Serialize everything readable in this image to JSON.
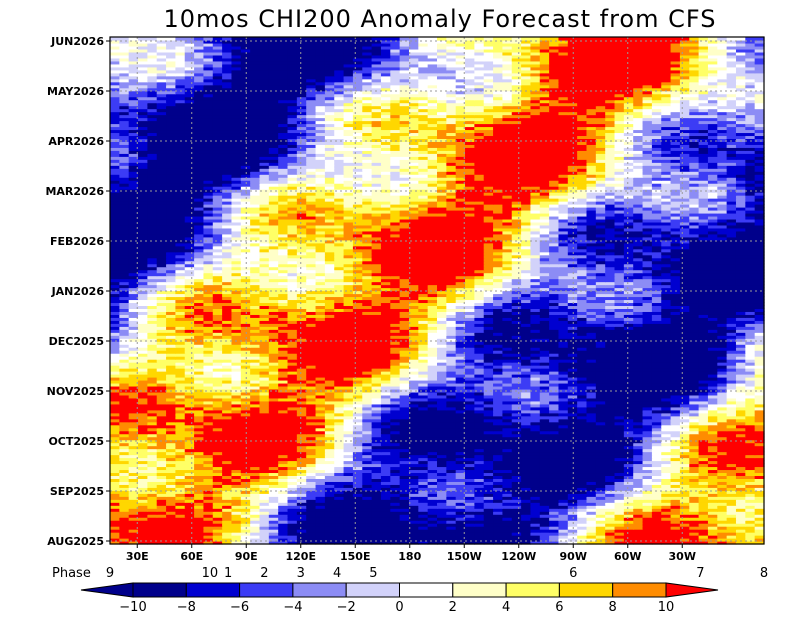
{
  "chart_data": {
    "type": "heatmap",
    "title": "10mos CHI200 Anomaly Forecast from CFS",
    "y_ticks": [
      "JUN2026",
      "MAY2026",
      "APR2026",
      "MAR2026",
      "FEB2026",
      "JAN2026",
      "DEC2025",
      "NOV2025",
      "OCT2025",
      "SEP2025",
      "AUG2025"
    ],
    "x_ticks": [
      "30E",
      "60E",
      "90E",
      "120E",
      "150E",
      "180",
      "150W",
      "120W",
      "90W",
      "60W",
      "30W"
    ],
    "x_tick_lon": [
      30,
      60,
      90,
      120,
      150,
      180,
      210,
      240,
      270,
      300,
      330
    ],
    "x_range_lon": [
      15,
      375
    ],
    "phase_label": "Phase",
    "phase_marks": [
      {
        "label": "9",
        "lon": 15
      },
      {
        "label": "10",
        "lon": 70
      },
      {
        "label": "1",
        "lon": 80
      },
      {
        "label": "2",
        "lon": 100
      },
      {
        "label": "3",
        "lon": 120
      },
      {
        "label": "4",
        "lon": 140
      },
      {
        "label": "5",
        "lon": 160
      },
      {
        "label": "6",
        "lon": 270
      },
      {
        "label": "7",
        "lon": 340
      },
      {
        "label": "8",
        "lon": 375
      }
    ],
    "levels": [
      -10,
      -8,
      -6,
      -4,
      -2,
      0,
      2,
      4,
      6,
      8,
      10
    ],
    "level_labels": [
      "−10",
      "−8",
      "−6",
      "−4",
      "−2",
      "0",
      "2",
      "4",
      "6",
      "8",
      "10"
    ],
    "colors": [
      "#00008b",
      "#0000d0",
      "#3c3cf5",
      "#8c8cf5",
      "#d2d2fa",
      "#ffffff",
      "#ffffc8",
      "#ffff66",
      "#ffd700",
      "#ff8c00",
      "#ff0000"
    ],
    "grid": true,
    "colorbar_position": "bottom",
    "phase_speed_lon_per_month": 30,
    "features": [
      {
        "type": "band",
        "amp": 12,
        "phase": 0
      },
      {
        "type": "band",
        "amp": 8,
        "phase": 180
      }
    ]
  }
}
